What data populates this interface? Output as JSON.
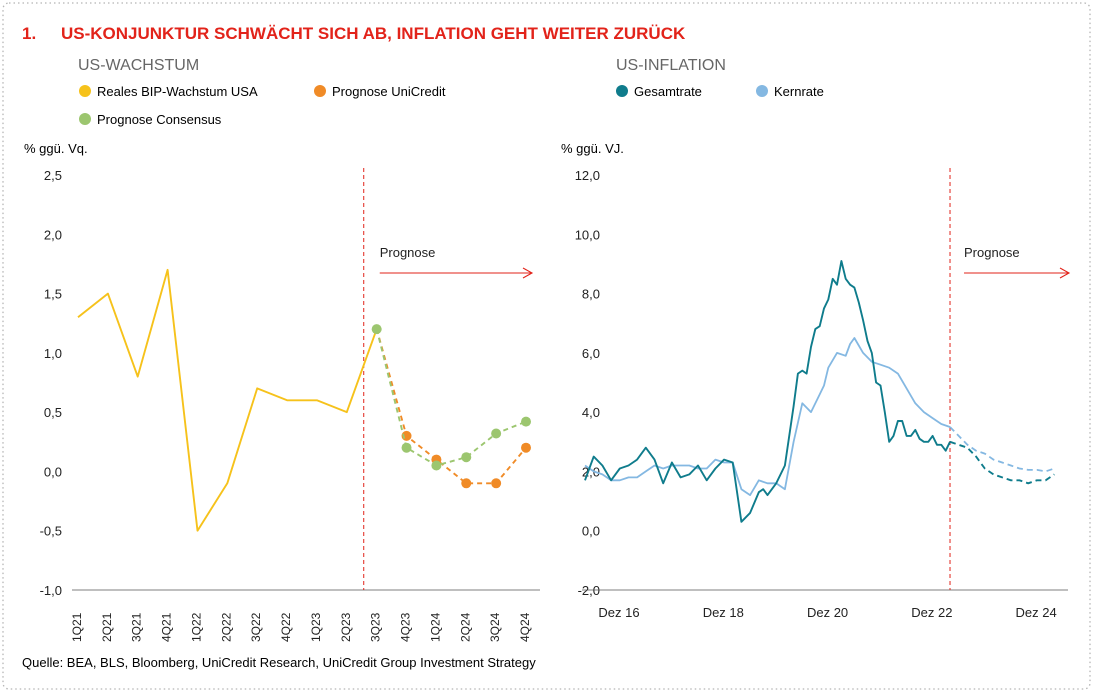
{
  "header": {
    "number": "1.",
    "title": "US-KONJUNKTUR SCHWÄCHT SICH AB, INFLATION GEHT WEITER ZURÜCK"
  },
  "source": "Quelle: BEA, BLS, Bloomberg, UniCredit Research, UniCredit Group Investment Strategy",
  "colors": {
    "title_red": "#e2231a",
    "panel_title_gray": "#666666",
    "gdp_actual": "#f6c21b",
    "gdp_unicredit": "#f08b27",
    "gdp_consensus": "#9cc66f",
    "cpi_headline": "#0f7c8c",
    "cpi_core": "#84b8e2",
    "divider": "#e2231a"
  },
  "chart_data": [
    {
      "type": "line",
      "panel_title": "US-WACHSTUM",
      "ylabel": "% ggü. Vq.",
      "ylim": [
        -1.0,
        2.5
      ],
      "yticks": [
        "2,5",
        "2,0",
        "1,5",
        "1,0",
        "0,5",
        "0,0",
        "-0,5",
        "-1,0"
      ],
      "ytick_values": [
        2.5,
        2.0,
        1.5,
        1.0,
        0.5,
        0.0,
        -0.5,
        -1.0
      ],
      "categories": [
        "1Q21",
        "2Q21",
        "3Q21",
        "4Q21",
        "1Q22",
        "2Q22",
        "3Q22",
        "4Q22",
        "1Q23",
        "2Q23",
        "3Q23",
        "4Q23",
        "1Q24",
        "2Q24",
        "3Q24",
        "4Q24"
      ],
      "forecast_label": "Prognose",
      "series": [
        {
          "name": "Reales BIP-Wachstum USA",
          "color": "#f6c21b",
          "style": "solid",
          "values": [
            1.3,
            1.5,
            0.8,
            1.7,
            -0.5,
            -0.1,
            0.7,
            0.6,
            0.6,
            0.5,
            1.2,
            null,
            null,
            null,
            null,
            null
          ]
        },
        {
          "name": "Prognose UniCredit",
          "color": "#f08b27",
          "style": "dashed",
          "values": [
            null,
            null,
            null,
            null,
            null,
            null,
            null,
            null,
            null,
            null,
            1.2,
            0.3,
            0.1,
            -0.1,
            -0.1,
            0.2
          ]
        },
        {
          "name": "Prognose Consensus",
          "color": "#9cc66f",
          "style": "dashed",
          "values": [
            null,
            null,
            null,
            null,
            null,
            null,
            null,
            null,
            null,
            null,
            1.2,
            0.2,
            0.05,
            0.12,
            0.32,
            0.42
          ]
        }
      ]
    },
    {
      "type": "line",
      "panel_title": "US-INFLATION",
      "ylabel": "% ggü. VJ.",
      "ylim": [
        -2.0,
        12.0
      ],
      "yticks": [
        "12,0",
        "10,0",
        "8,0",
        "6,0",
        "4,0",
        "2,0",
        "0,0",
        "-2,0"
      ],
      "ytick_values": [
        12,
        10,
        8,
        6,
        4,
        2,
        0,
        -2
      ],
      "x_axis": "monthly, Dez 2016 – Dez 2025",
      "x_ticks": [
        {
          "label": "Dez 16",
          "x": 0
        },
        {
          "label": "Dez 18",
          "x": 24
        },
        {
          "label": "Dez 20",
          "x": 48
        },
        {
          "label": "Dez 22",
          "x": 72
        },
        {
          "label": "Dez 24",
          "x": 96
        }
      ],
      "forecast_start_x": 84,
      "forecast_label": "Prognose",
      "series": [
        {
          "name": "Gesamtrate",
          "color": "#0f7c8c",
          "x": [
            0,
            2,
            4,
            6,
            8,
            10,
            12,
            14,
            16,
            18,
            20,
            22,
            24,
            26,
            28,
            30,
            32,
            34,
            36,
            38,
            40,
            41,
            42,
            44,
            46,
            48,
            49,
            50,
            51,
            52,
            53,
            54,
            55,
            56,
            57,
            58,
            59,
            60,
            61,
            62,
            63,
            64,
            65,
            66,
            67,
            68,
            69,
            70,
            71,
            72,
            73,
            74,
            75,
            76,
            77,
            78,
            79,
            80,
            81,
            82,
            83,
            84
          ],
          "values": [
            1.7,
            2.5,
            2.2,
            1.7,
            2.1,
            2.2,
            2.4,
            2.8,
            2.4,
            1.6,
            2.3,
            1.8,
            1.9,
            2.2,
            1.7,
            2.1,
            2.4,
            2.3,
            0.3,
            0.6,
            1.3,
            1.4,
            1.2,
            1.6,
            2.2,
            4.2,
            5.3,
            5.4,
            5.3,
            6.2,
            6.8,
            6.9,
            7.5,
            7.8,
            8.5,
            8.3,
            9.1,
            8.5,
            8.3,
            8.2,
            7.7,
            7.1,
            6.4,
            6.0,
            5.0,
            4.9,
            4.0,
            3.0,
            3.2,
            3.7,
            3.7,
            3.2,
            3.2,
            3.4,
            3.1,
            3.0,
            3.0,
            3.2,
            2.9,
            2.9,
            2.7,
            3.0
          ],
          "forecast_x": [
            84,
            86,
            88,
            90,
            92,
            94,
            96,
            98,
            100,
            102,
            104,
            106,
            108
          ],
          "forecast_values": [
            3.0,
            2.9,
            2.8,
            2.5,
            2.1,
            1.9,
            1.8,
            1.7,
            1.7,
            1.6,
            1.7,
            1.7,
            1.9
          ]
        },
        {
          "name": "Kernrate",
          "color": "#84b8e2",
          "x": [
            0,
            2,
            4,
            6,
            8,
            10,
            12,
            14,
            16,
            18,
            20,
            22,
            24,
            26,
            28,
            30,
            32,
            34,
            36,
            38,
            40,
            42,
            44,
            46,
            48,
            50,
            52,
            54,
            55,
            56,
            58,
            60,
            61,
            62,
            64,
            66,
            68,
            70,
            72,
            74,
            76,
            78,
            80,
            82,
            84
          ],
          "values": [
            2.2,
            2.0,
            1.9,
            1.7,
            1.7,
            1.8,
            1.8,
            2.0,
            2.2,
            2.1,
            2.2,
            2.2,
            2.2,
            2.1,
            2.1,
            2.4,
            2.3,
            2.3,
            1.4,
            1.2,
            1.7,
            1.6,
            1.6,
            1.4,
            3.0,
            4.3,
            4.0,
            4.6,
            4.9,
            5.5,
            6.0,
            5.9,
            6.3,
            6.5,
            6.0,
            5.7,
            5.6,
            5.5,
            5.3,
            4.8,
            4.3,
            4.0,
            3.8,
            3.6,
            3.5
          ],
          "forecast_x": [
            84,
            86,
            88,
            90,
            92,
            94,
            96,
            98,
            100,
            102,
            104,
            106,
            108
          ],
          "forecast_values": [
            3.5,
            3.2,
            2.9,
            2.7,
            2.6,
            2.4,
            2.3,
            2.2,
            2.1,
            2.05,
            2.05,
            2.0,
            2.1
          ]
        }
      ]
    }
  ]
}
